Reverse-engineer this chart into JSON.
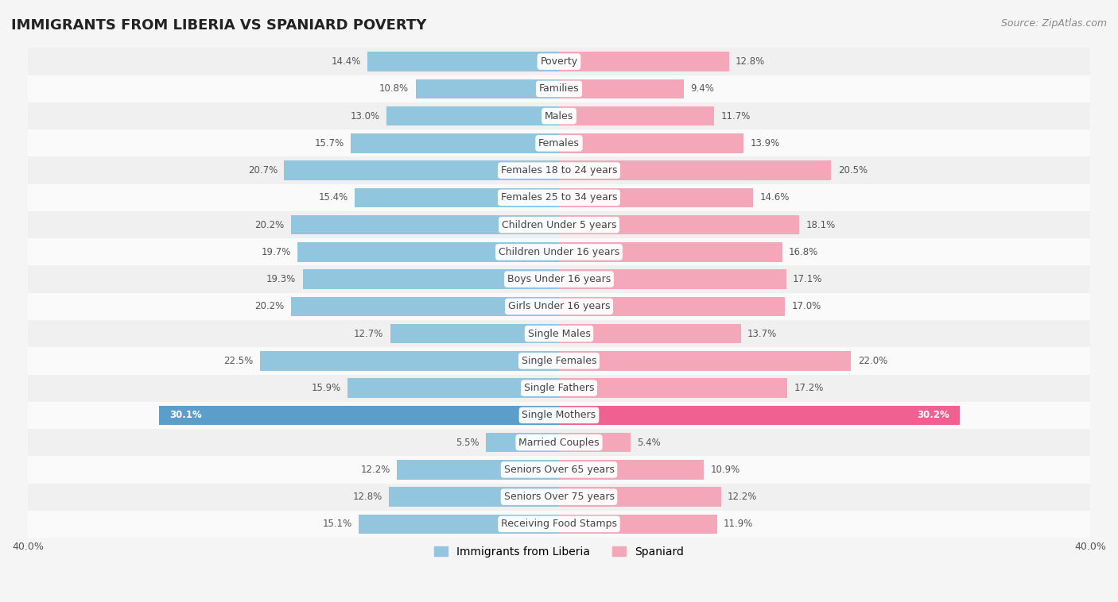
{
  "title": "IMMIGRANTS FROM LIBERIA VS SPANIARD POVERTY",
  "source": "Source: ZipAtlas.com",
  "categories": [
    "Poverty",
    "Families",
    "Males",
    "Females",
    "Females 18 to 24 years",
    "Females 25 to 34 years",
    "Children Under 5 years",
    "Children Under 16 years",
    "Boys Under 16 years",
    "Girls Under 16 years",
    "Single Males",
    "Single Females",
    "Single Fathers",
    "Single Mothers",
    "Married Couples",
    "Seniors Over 65 years",
    "Seniors Over 75 years",
    "Receiving Food Stamps"
  ],
  "liberia_values": [
    14.4,
    10.8,
    13.0,
    15.7,
    20.7,
    15.4,
    20.2,
    19.7,
    19.3,
    20.2,
    12.7,
    22.5,
    15.9,
    30.1,
    5.5,
    12.2,
    12.8,
    15.1
  ],
  "spaniard_values": [
    12.8,
    9.4,
    11.7,
    13.9,
    20.5,
    14.6,
    18.1,
    16.8,
    17.1,
    17.0,
    13.7,
    22.0,
    17.2,
    30.2,
    5.4,
    10.9,
    12.2,
    11.9
  ],
  "liberia_color": "#92c5de",
  "spaniard_color": "#f4a7b9",
  "single_mothers_liberia_color": "#5b9ec9",
  "single_mothers_spaniard_color": "#f06090",
  "row_colors": [
    "#f0f0f0",
    "#fafafa"
  ],
  "background_color": "#f5f5f5",
  "xlim": 40.0,
  "bar_height": 0.72,
  "title_fontsize": 13,
  "label_fontsize": 9,
  "value_fontsize": 8.5,
  "legend_fontsize": 10,
  "source_fontsize": 9,
  "axis_fontsize": 9,
  "legend_liberia": "Immigrants from Liberia",
  "legend_spaniard": "Spaniard"
}
